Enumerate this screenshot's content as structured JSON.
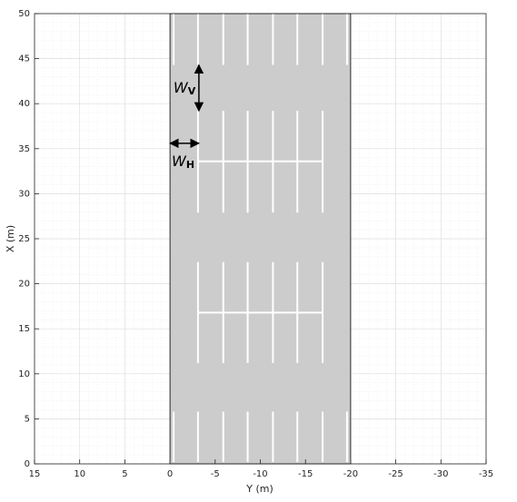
{
  "chart_data": {
    "type": "parking-lot",
    "xlabel": "Y (m)",
    "ylabel": "X (m)",
    "xlim": [
      15,
      -35
    ],
    "xticks": [
      15,
      10,
      5,
      0,
      -5,
      -10,
      -15,
      -20,
      -25,
      -30,
      -35
    ],
    "ylim": [
      0,
      50
    ],
    "yticks": [
      0,
      5,
      10,
      15,
      20,
      25,
      30,
      35,
      40,
      45,
      50
    ],
    "grid": true,
    "minor_grid": true,
    "lot": [
      0,
      0,
      -20,
      50
    ],
    "lot_color": "#cccccc",
    "marking_color": "#ffffff",
    "segments": [
      [
        -0.4,
        44.3,
        -0.4,
        50
      ],
      [
        -3.1,
        44.3,
        -3.1,
        50
      ],
      [
        -5.9,
        44.3,
        -5.9,
        50
      ],
      [
        -8.6,
        44.3,
        -8.6,
        50
      ],
      [
        -11.4,
        44.3,
        -11.4,
        50
      ],
      [
        -14.1,
        44.3,
        -14.1,
        50
      ],
      [
        -16.9,
        44.3,
        -16.9,
        50
      ],
      [
        -19.6,
        44.3,
        -19.6,
        50
      ],
      [
        -0.4,
        0.2,
        -0.4,
        5.8
      ],
      [
        -3.1,
        0.2,
        -3.1,
        5.8
      ],
      [
        -5.9,
        0.2,
        -5.9,
        5.8
      ],
      [
        -8.6,
        0.2,
        -8.6,
        5.8
      ],
      [
        -11.4,
        0.2,
        -11.4,
        5.8
      ],
      [
        -14.1,
        0.2,
        -14.1,
        5.8
      ],
      [
        -16.9,
        0.2,
        -16.9,
        5.8
      ],
      [
        -19.6,
        0.2,
        -19.6,
        5.8
      ],
      [
        -3.1,
        27.9,
        -3.1,
        39.2
      ],
      [
        -5.9,
        27.9,
        -5.9,
        39.2
      ],
      [
        -8.6,
        27.9,
        -8.6,
        39.2
      ],
      [
        -11.4,
        27.9,
        -11.4,
        39.2
      ],
      [
        -14.1,
        27.9,
        -14.1,
        39.2
      ],
      [
        -16.9,
        27.9,
        -16.9,
        39.2
      ],
      [
        -3.1,
        33.6,
        -16.9,
        33.6
      ],
      [
        -3.1,
        11.2,
        -3.1,
        22.4
      ],
      [
        -5.9,
        11.2,
        -5.9,
        22.4
      ],
      [
        -8.6,
        11.2,
        -8.6,
        22.4
      ],
      [
        -11.4,
        11.2,
        -11.4,
        22.4
      ],
      [
        -14.1,
        11.2,
        -14.1,
        22.4
      ],
      [
        -16.9,
        11.2,
        -16.9,
        22.4
      ],
      [
        -3.1,
        16.8,
        -16.9,
        16.8
      ]
    ],
    "annotations": [
      {
        "text": "W",
        "subscript": "V",
        "arrow": [
          -3.2,
          44.3,
          -3.2,
          39.2
        ]
      },
      {
        "text": "W",
        "subscript": "H",
        "arrow": [
          0,
          35.6,
          -3.2,
          35.6
        ]
      }
    ]
  }
}
